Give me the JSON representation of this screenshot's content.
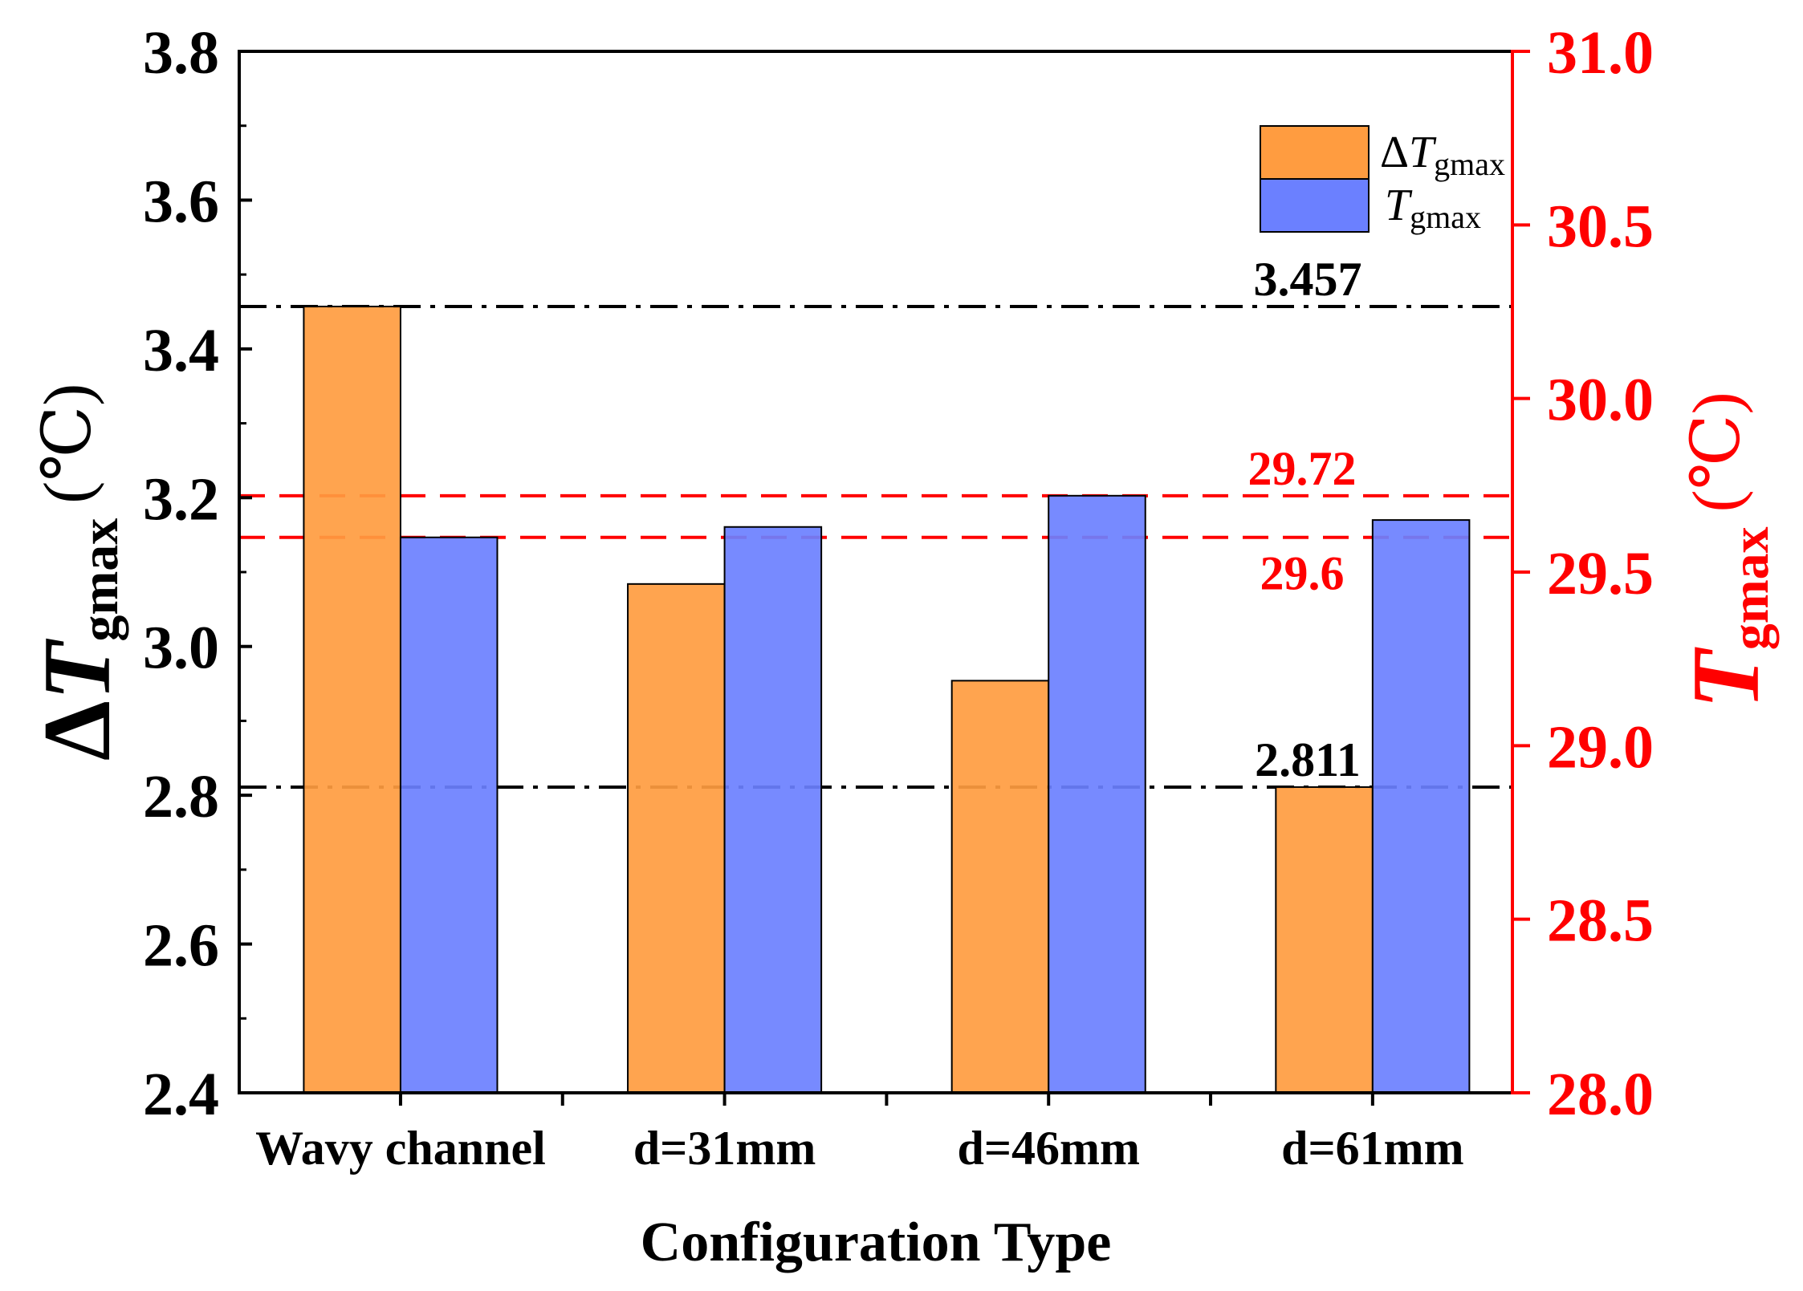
{
  "chart_data": {
    "type": "bar",
    "categories": [
      "Wavy channel",
      "d=31mm",
      "d=46mm",
      "d=61mm"
    ],
    "series": [
      {
        "color": "#FF9C40",
        "values": [
          3.457,
          3.084,
          2.954,
          2.811
        ],
        "label": {
          "prefix": "Δ",
          "symbol": "T",
          "subscript": "gmax"
        }
      },
      {
        "color": "#6B80FF",
        "values": [
          29.6,
          29.63,
          29.72,
          29.65
        ],
        "label": {
          "symbol": "T",
          "subscript": "gmax"
        }
      }
    ],
    "xlabel": "Configuration Type",
    "ylabel": {
      "prefix": "Δ",
      "symbol": "T",
      "subscript": "gmax",
      "unit": "(℃)"
    },
    "y2label": {
      "symbol": "T",
      "subscript": "gmax",
      "unit": "(℃)"
    },
    "ylim": [
      2.4,
      3.8
    ],
    "y2lim": [
      28.0,
      31.0
    ],
    "y_ticks": [
      "2.4",
      "2.6",
      "2.8",
      "3.0",
      "3.2",
      "3.4",
      "3.6",
      "3.8"
    ],
    "y2_ticks": [
      "28.0",
      "28.5",
      "29.0",
      "29.5",
      "30.0",
      "30.5",
      "31.0"
    ],
    "ref_lines": {
      "y": [
        {
          "value": 3.457,
          "label": "3.457"
        },
        {
          "value": 2.811,
          "label": "2.811"
        }
      ],
      "y2": [
        {
          "value": 29.72,
          "label": "29.72"
        },
        {
          "value": 29.6,
          "label": "29.6"
        }
      ]
    },
    "legend_position": "top-right",
    "grid": false,
    "colors": {
      "y_axis": "#000000",
      "y2_axis": "#FF0000",
      "y_ref": "#000000",
      "y2_ref": "#FF0000"
    }
  }
}
